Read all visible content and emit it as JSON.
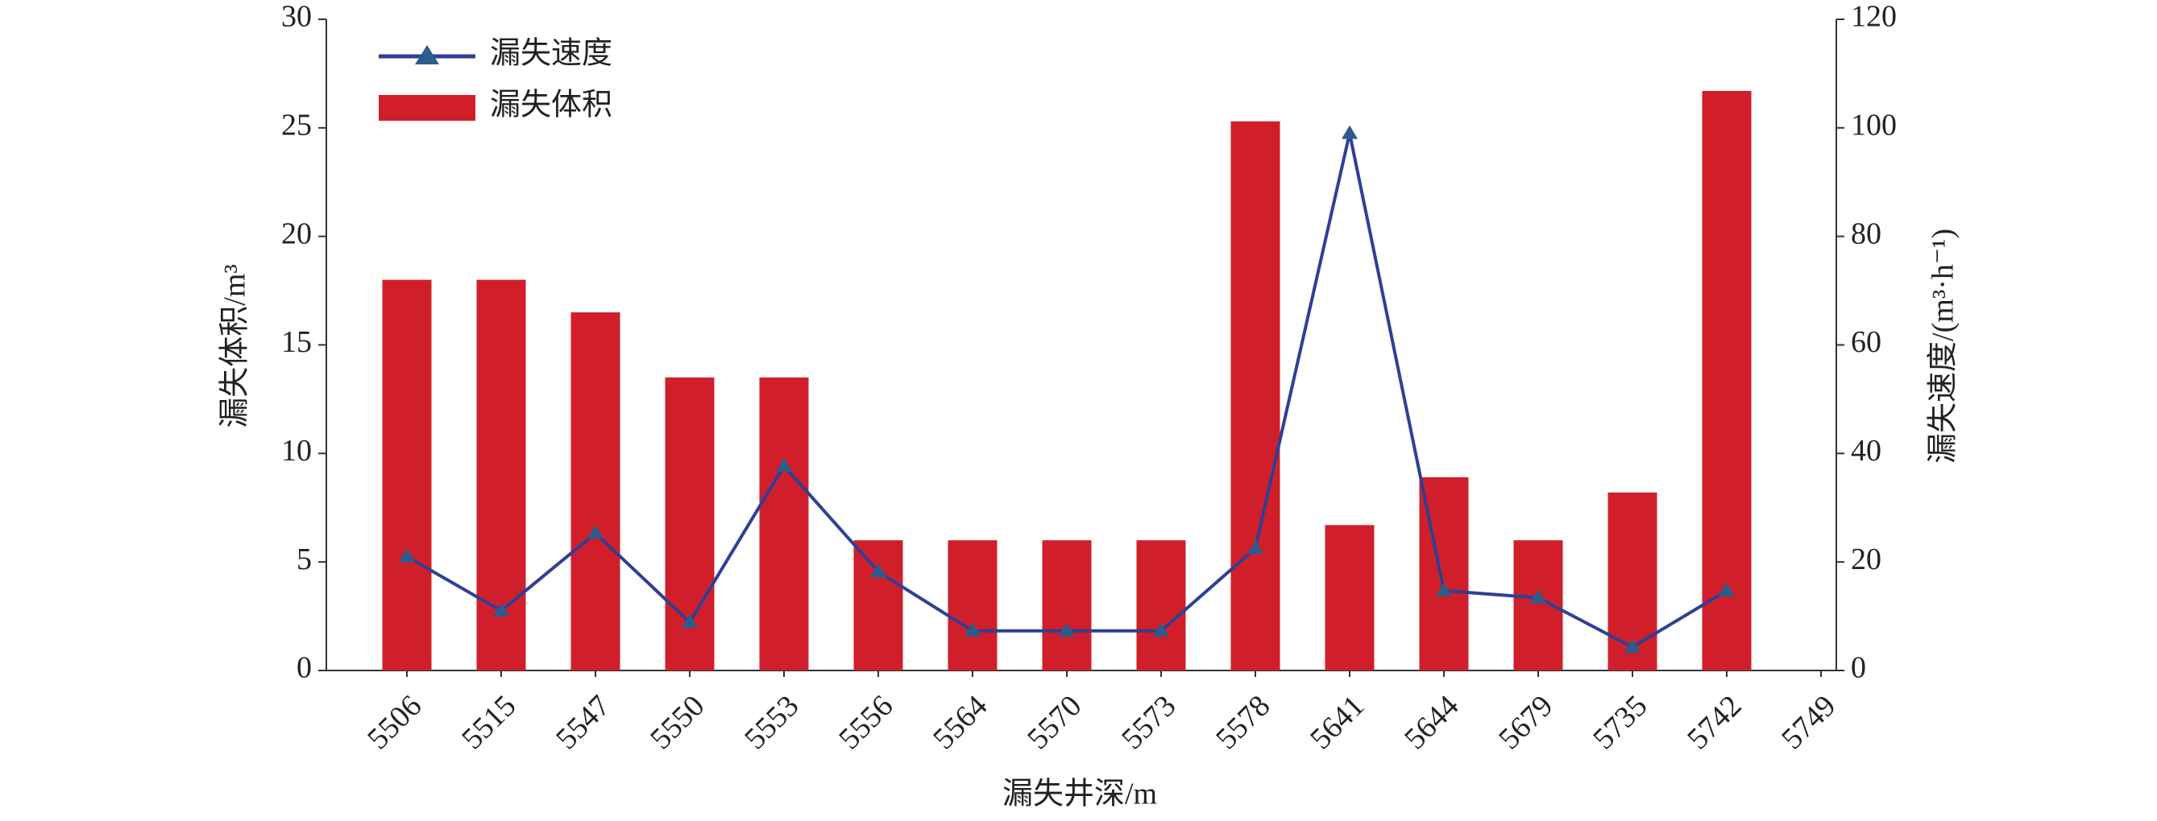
{
  "chart_data": {
    "type": "bar_line",
    "xlabel": "漏失井深/m",
    "ylabel": "漏失体积/m³",
    "y2label": "漏失速度/(m³·h⁻¹)",
    "categories": [
      "5506",
      "5515",
      "5547",
      "5550",
      "5553",
      "5556",
      "5564",
      "5570",
      "5573",
      "5578",
      "5641",
      "5644",
      "5679",
      "5735",
      "5742",
      "5749"
    ],
    "series": [
      {
        "name": "漏失速度",
        "type": "line",
        "axis": "y2",
        "color": "#2f3f94",
        "marker_color": "#2b5d8c",
        "values": [
          21,
          11,
          25.3,
          8.9,
          37.7,
          18.2,
          7.3,
          7.3,
          7.3,
          22.5,
          99,
          14.7,
          13.4,
          4.3,
          14.7,
          null
        ]
      },
      {
        "name": "漏失体积",
        "type": "bar",
        "color": "#d01f2a",
        "values": [
          18,
          18,
          16.5,
          13.5,
          13.5,
          6,
          6,
          6,
          6,
          25.3,
          6.7,
          8.9,
          6,
          8.2,
          26.7,
          null
        ]
      }
    ],
    "ylim": [
      0,
      30
    ],
    "yticks": [
      0,
      5,
      10,
      15,
      20,
      25,
      30
    ],
    "y2lim": [
      0,
      120
    ],
    "y2ticks": [
      0,
      20,
      40,
      60,
      80,
      100,
      120
    ]
  }
}
